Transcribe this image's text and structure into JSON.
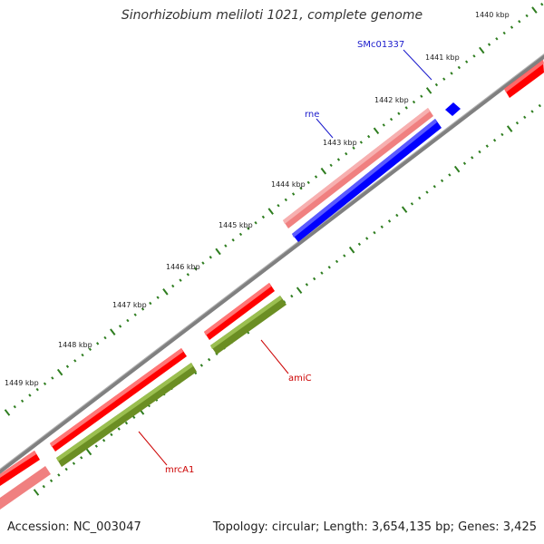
{
  "title": "Sinorhizobium meliloti 1021, complete genome",
  "footer": {
    "accession": "Accession: NC_003047",
    "summary": "Topology: circular; Length: 3,654,135 bp; Genes: 3,425"
  },
  "colors": {
    "backbone": "#808080",
    "tick": "#2e7d1f",
    "gene_forward": "#ff0000",
    "gene_forward_light": "#f08080",
    "gene_reverse": "#0000ff",
    "gene_reverse_green": "#6b8e23",
    "label_blue": "#1a1acc",
    "label_red": "#cc0000"
  },
  "ticks": [
    "1440 kbp",
    "1441 kbp",
    "1442 kbp",
    "1443 kbp",
    "1444 kbp",
    "1445 kbp",
    "1446 kbp",
    "1447 kbp",
    "1448 kbp",
    "1449 kbp"
  ],
  "gene_labels": {
    "smc": "SMc01337",
    "rne": "rne",
    "amic": "amiC",
    "mrca": "mrcA1"
  }
}
